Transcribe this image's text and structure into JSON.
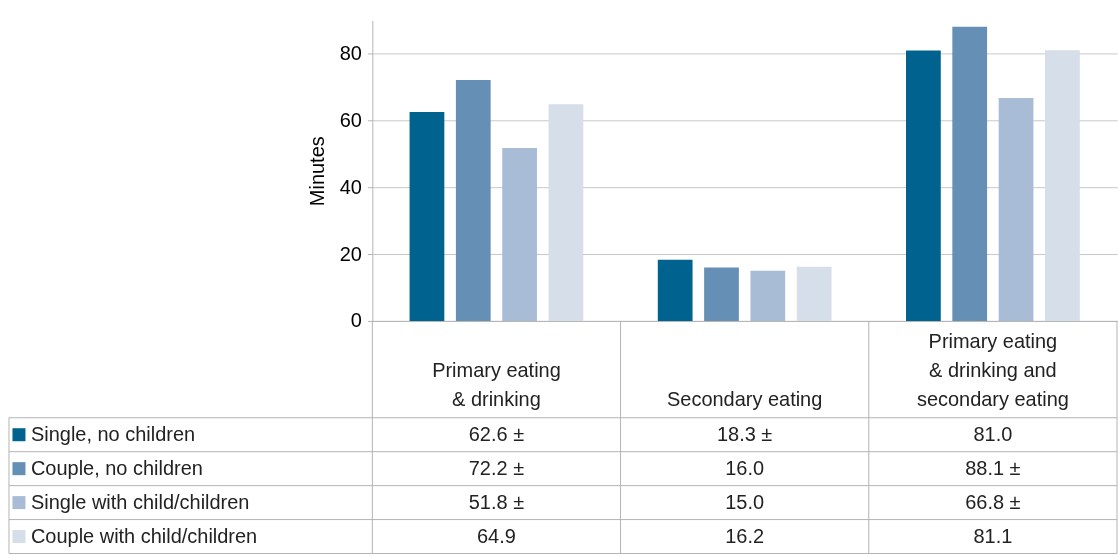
{
  "chart_data": {
    "type": "bar",
    "ylabel": "Minutes",
    "categories": [
      "Primary eating\n& drinking",
      "Secondary eating",
      "Primary eating\n& drinking and\nsecondary eating"
    ],
    "ylim": [
      0,
      90
    ],
    "yticks": [
      0,
      20,
      40,
      60,
      80
    ],
    "grid": "y",
    "legend": "bottom left",
    "series": [
      {
        "name": "Single, no children",
        "color": "#00628f",
        "values": [
          62.6,
          18.3,
          81.0
        ],
        "value_labels": [
          "62.6 ±",
          "18.3 ±",
          "81.0"
        ]
      },
      {
        "name": "Couple, no children",
        "color": "#668fb5",
        "values": [
          72.2,
          16.0,
          88.1
        ],
        "value_labels": [
          "72.2 ±",
          "16.0",
          "88.1 ±"
        ]
      },
      {
        "name": "Single with child/children",
        "color": "#a9bcd6",
        "values": [
          51.8,
          15.0,
          66.8
        ],
        "value_labels": [
          "51.8 ±",
          "15.0",
          "66.8 ±"
        ]
      },
      {
        "name": "Couple with child/children",
        "color": "#d6dee9",
        "values": [
          64.9,
          16.2,
          81.1
        ],
        "value_labels": [
          "64.9",
          "16.2",
          "81.1"
        ]
      }
    ]
  }
}
